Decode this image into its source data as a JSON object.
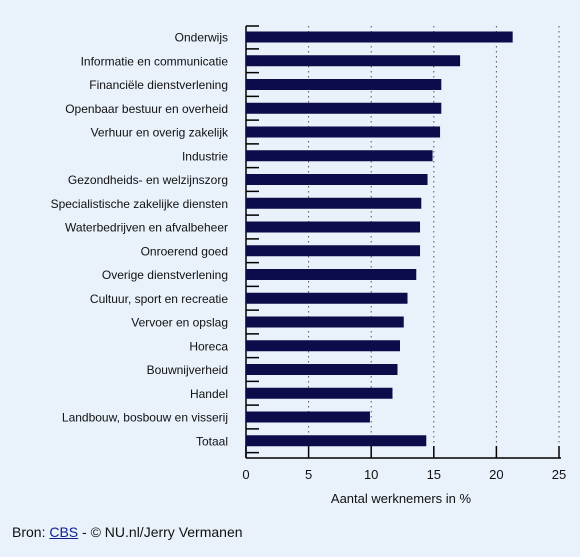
{
  "colors": {
    "background": "#e9f1fb",
    "bar": "#0c0c4a",
    "axis": "#000000",
    "grid": "#555555",
    "link": "#0b1e8c"
  },
  "chart_data": {
    "type": "bar",
    "orientation": "horizontal",
    "categories": [
      "Onderwijs",
      "Informatie en communicatie",
      "Financiële dienstverlening",
      "Openbaar bestuur en overheid",
      "Verhuur en overig zakelijk",
      "Industrie",
      "Gezondheids- en welzijnszorg",
      "Specialistische zakelijke diensten",
      "Waterbedrijven en afvalbeheer",
      "Onroerend goed",
      "Overige dienstverlening",
      "Cultuur, sport en recreatie",
      "Vervoer en opslag",
      "Horeca",
      "Bouwnijverheid",
      "Handel",
      "Landbouw, bosbouw en visserij",
      "Totaal"
    ],
    "values": [
      21.3,
      17.1,
      15.6,
      15.6,
      15.5,
      14.9,
      14.5,
      14.0,
      13.9,
      13.9,
      13.6,
      12.9,
      12.6,
      12.3,
      12.1,
      11.7,
      9.9,
      14.4
    ],
    "xticks": [
      0,
      5,
      10,
      15,
      20,
      25
    ],
    "xlim": [
      0,
      25
    ],
    "xlabel": "Aantal werknemers in %",
    "ylabel": "",
    "grid": "vertical dotted"
  },
  "footer": {
    "prefix": "Bron: ",
    "link": "CBS",
    "suffix": " - © NU.nl/Jerry Vermanen"
  }
}
